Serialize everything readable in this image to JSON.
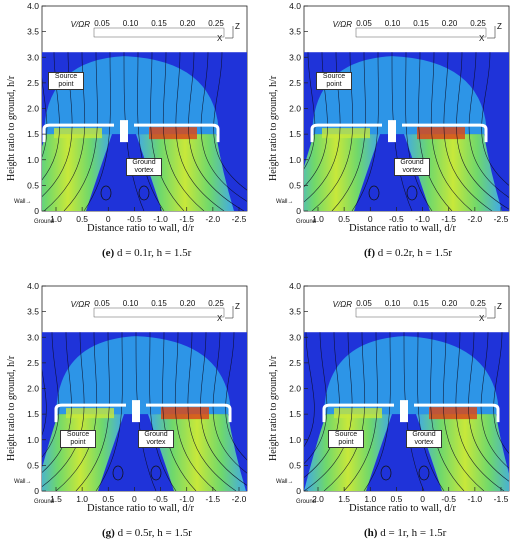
{
  "panels": [
    {
      "id": "e",
      "caption_letter": "(e)",
      "caption_text": "d = 0.1r, h = 1.5r",
      "x_ticks": [
        "1.0",
        "0.5",
        "0",
        "-0.5",
        "-1.0",
        "-1.5",
        "-2.0",
        "-2.5"
      ],
      "annotations": [
        "Source point",
        "Ground vortex"
      ],
      "small_labels": [
        "Wall",
        "Ground"
      ]
    },
    {
      "id": "f",
      "caption_letter": "(f)",
      "caption_text": "d = 0.2r, h = 1.5r",
      "x_ticks": [
        "1.0",
        "0.5",
        "0",
        "-0.5",
        "-1.0",
        "-1.5",
        "-2.0",
        "-2.5"
      ],
      "annotations": [
        "Source point",
        "Ground vortex"
      ],
      "small_labels": [
        "Wall",
        "Ground"
      ]
    },
    {
      "id": "g",
      "caption_letter": "(g)",
      "caption_text": "d = 0.5r, h = 1.5r",
      "x_ticks": [
        "1.5",
        "1.0",
        "0.5",
        "0",
        "-0.5",
        "-1.0",
        "-1.5",
        "-2.0"
      ],
      "annotations": [
        "Source point",
        "Ground vortex"
      ],
      "small_labels": [
        "Wall",
        "Ground"
      ]
    },
    {
      "id": "h",
      "caption_letter": "(h)",
      "caption_text": "d = 1r, h = 1.5r",
      "x_ticks": [
        "2.0",
        "1.5",
        "1.0",
        "0.5",
        "0",
        "-0.5",
        "-1.0",
        "-1.5"
      ],
      "annotations": [
        "Source point",
        "Ground vortex"
      ],
      "small_labels": [
        "Wall",
        "Ground"
      ]
    }
  ],
  "y_ticks": [
    "4.0",
    "3.5",
    "3.0",
    "2.5",
    "2.0",
    "1.5",
    "1.0",
    "0.5",
    "0"
  ],
  "y_label": "Height ratio to ground, h/r",
  "x_label": "Distance ratio to wall, d/r",
  "colorbar": {
    "label": "V/ΩR",
    "ticks": [
      "0.05",
      "0.10",
      "0.15",
      "0.20",
      "0.25"
    ],
    "axis_labels": [
      "Z",
      "X"
    ]
  },
  "colors": {
    "background_field": "#1f33d9",
    "plume_outer": "#3fa8ea",
    "plume_mid": "#6fd86c",
    "plume_inner": "#c8e83a",
    "peak": "#d84a1a"
  }
}
